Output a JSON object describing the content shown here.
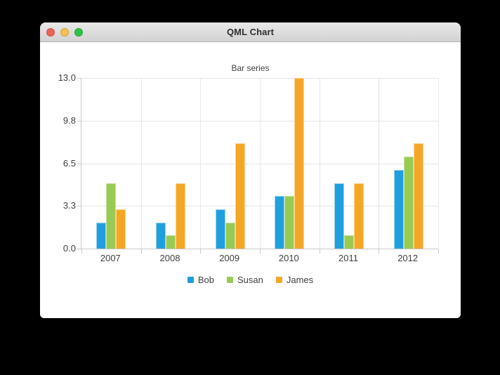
{
  "window": {
    "title": "QML Chart",
    "traffic_lights": [
      {
        "name": "close",
        "color": "#f2605a"
      },
      {
        "name": "minimize",
        "color": "#f5c04e"
      },
      {
        "name": "zoom",
        "color": "#2fc146"
      }
    ]
  },
  "chart_data": {
    "type": "bar",
    "title": "Bar series",
    "categories": [
      "2007",
      "2008",
      "2009",
      "2010",
      "2011",
      "2012"
    ],
    "series": [
      {
        "name": "Bob",
        "color": "#209fdf",
        "border_color": "#9ad4f1",
        "values": [
          2,
          2,
          3,
          4,
          5,
          6
        ]
      },
      {
        "name": "Susan",
        "color": "#99ca53",
        "border_color": "#c9e4a0",
        "values": [
          5,
          1,
          2,
          4,
          1,
          7
        ]
      },
      {
        "name": "James",
        "color": "#f6a625",
        "border_color": "#fbd494",
        "values": [
          3,
          5,
          8,
          13,
          5,
          8
        ]
      }
    ],
    "ylim": [
      0,
      13
    ],
    "y_ticks": [
      "13.0",
      "9.8",
      "6.5",
      "3.3",
      "0.0"
    ],
    "grid": true,
    "legend_position": "bottom",
    "bar_group_width_fraction": 0.5,
    "colors": {
      "axis_line": "#c9c9c9",
      "grid_line": "#e6e6e6",
      "label_text": "#404040"
    }
  }
}
